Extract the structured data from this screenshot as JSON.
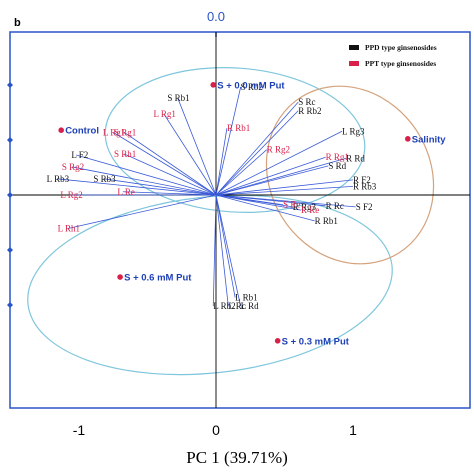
{
  "panel_label": "b",
  "top_axis_label": "0.0",
  "colors": {
    "frame": "#2a55c8",
    "vector": "#3a5ad8",
    "ppd": "#111111",
    "ppt": "#d8204a",
    "treatment_label": "#1d3fb5",
    "treatment_point": "#d8204a",
    "ellipse_blue": "#7fc6dc",
    "ellipse_orange": "#d4a27c"
  },
  "chart_data": {
    "type": "scatter",
    "subtype": "pca-biplot",
    "xlabel": "PC 1 (39.71%)",
    "ylabel": "",
    "xlim": [
      -1.5,
      1.8
    ],
    "ylim": [
      -1.25,
      1.5
    ],
    "x_ticks": [
      -1,
      0,
      1
    ],
    "x_tick_labels": [
      "-1",
      "0",
      "1"
    ],
    "legend": {
      "placement": "top-right",
      "entries": [
        {
          "label": "PPD type ginsenosides",
          "color": "#111111"
        },
        {
          "label": "PPT type ginsenosides",
          "color": "#d8204a"
        }
      ]
    },
    "treatments": [
      {
        "label": "Control",
        "x": -1.13,
        "y": 0.6
      },
      {
        "label": "S + 0.0 mM Put",
        "x": -0.02,
        "y": 1.02
      },
      {
        "label": "Salinity",
        "x": 1.4,
        "y": 0.52
      },
      {
        "label": "S + 0.6 mM Put",
        "x": -0.7,
        "y": -0.76
      },
      {
        "label": "S + 0.3 mM Put",
        "x": 0.45,
        "y": -1.35
      }
    ],
    "loadings": [
      {
        "label": "S Rb1",
        "group": "PPD",
        "x": -0.28,
        "y": 0.9
      },
      {
        "label": "S Rb2",
        "group": "PPD",
        "x": 0.18,
        "y": 1.0
      },
      {
        "label": "S Rc",
        "group": "PPD",
        "x": 0.6,
        "y": 0.86
      },
      {
        "label": "R Rb2",
        "group": "PPD",
        "x": 0.6,
        "y": 0.78
      },
      {
        "label": "L Rg3",
        "group": "PPD",
        "x": 0.92,
        "y": 0.59
      },
      {
        "label": "R Rd",
        "group": "PPD",
        "x": 0.95,
        "y": 0.34
      },
      {
        "label": "S Rd",
        "group": "PPD",
        "x": 0.82,
        "y": 0.27
      },
      {
        "label": "R F2",
        "group": "PPD",
        "x": 1.0,
        "y": 0.14
      },
      {
        "label": "R Rb3",
        "group": "PPD",
        "x": 1.0,
        "y": 0.08
      },
      {
        "label": "S F2",
        "group": "PPD",
        "x": 1.02,
        "y": -0.11
      },
      {
        "label": "R Rc",
        "group": "PPD",
        "x": 0.8,
        "y": -0.1
      },
      {
        "label": "R Rg3",
        "group": "PPD",
        "x": 0.56,
        "y": -0.11
      },
      {
        "label": "R Rb1",
        "group": "PPD",
        "x": 0.72,
        "y": -0.24
      },
      {
        "label": "L F2",
        "group": "PPD",
        "x": -1.02,
        "y": 0.37
      },
      {
        "label": "L Rb3",
        "group": "PPD",
        "x": -1.16,
        "y": 0.15
      },
      {
        "label": "S Rb3",
        "group": "PPD",
        "x": -0.82,
        "y": 0.15
      },
      {
        "label": "L Rb1",
        "group": "PPD",
        "x": 0.14,
        "y": -0.95
      },
      {
        "label": "L Rb2",
        "group": "PPD",
        "x": -0.02,
        "y": -1.03
      },
      {
        "label": "L Rc",
        "group": "PPD",
        "x": 0.09,
        "y": -1.03
      },
      {
        "label": "L Rd",
        "group": "PPD",
        "x": 0.18,
        "y": -1.03
      },
      {
        "label": "L Rg1",
        "group": "PPT",
        "x": -0.75,
        "y": 0.58
      },
      {
        "label": "S Rg1",
        "group": "PPT",
        "x": -0.67,
        "y": 0.58
      },
      {
        "label": "L Rg1",
        "group": "PPT",
        "x": -0.38,
        "y": 0.75
      },
      {
        "label": "S Rh1",
        "group": "PPT",
        "x": -0.67,
        "y": 0.38
      },
      {
        "label": "S Rg2",
        "group": "PPT",
        "x": -1.05,
        "y": 0.26
      },
      {
        "label": "L Rg2",
        "group": "PPT",
        "x": -1.06,
        "y": 0.0
      },
      {
        "label": "L Re",
        "group": "PPT",
        "x": -0.68,
        "y": 0.03
      },
      {
        "label": "L Rh1",
        "group": "PPT",
        "x": -1.08,
        "y": -0.31
      },
      {
        "label": "R Rb1",
        "group": "PPT",
        "x": 0.08,
        "y": 0.62
      },
      {
        "label": "R Rg2",
        "group": "PPT",
        "x": 0.37,
        "y": 0.42
      },
      {
        "label": "R Rg1",
        "group": "PPT",
        "x": 0.8,
        "y": 0.35
      },
      {
        "label": "S Re",
        "group": "PPT",
        "x": 0.49,
        "y": -0.09
      },
      {
        "label": "R Re",
        "group": "PPT",
        "x": 0.62,
        "y": -0.14
      }
    ]
  }
}
